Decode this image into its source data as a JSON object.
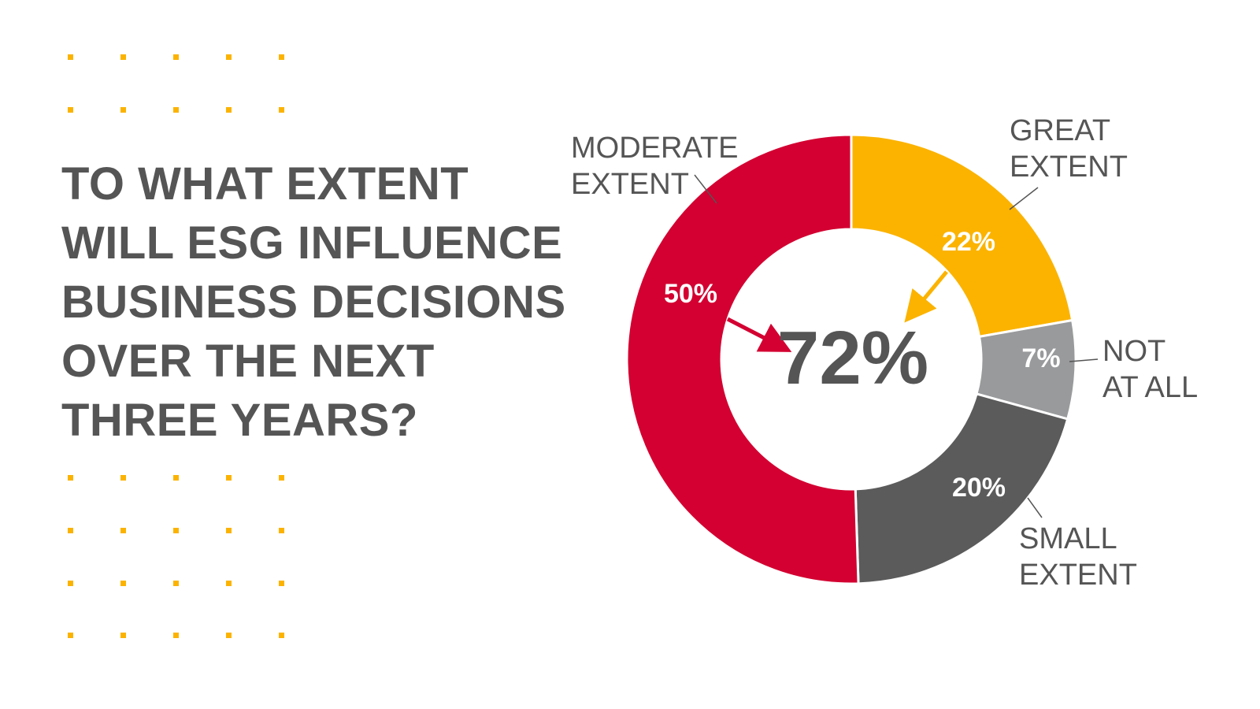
{
  "question": {
    "lines": [
      "TO WHAT EXTENT",
      "WILL ESG INFLUENCE",
      "BUSINESS DECISIONS",
      "OVER THE NEXT",
      "THREE YEARS?"
    ]
  },
  "chart_data": {
    "type": "pie",
    "variant": "donut",
    "center_label": "72%",
    "slices": [
      {
        "label": [
          "GREAT",
          "EXTENT"
        ],
        "value": 22,
        "value_label": "22%",
        "color": "#fbb300"
      },
      {
        "label": [
          "NOT",
          "AT ALL"
        ],
        "value": 7,
        "value_label": "7%",
        "color": "#999a9c"
      },
      {
        "label": [
          "SMALL",
          "EXTENT"
        ],
        "value": 20,
        "value_label": "20%",
        "color": "#5b5b5b"
      },
      {
        "label": [
          "MODERATE",
          "EXTENT"
        ],
        "value": 50,
        "value_label": "50%",
        "color": "#d30031"
      }
    ]
  },
  "colors": {
    "accent_dots": "#fbb300",
    "text": "#555555",
    "background": "#ffffff"
  }
}
